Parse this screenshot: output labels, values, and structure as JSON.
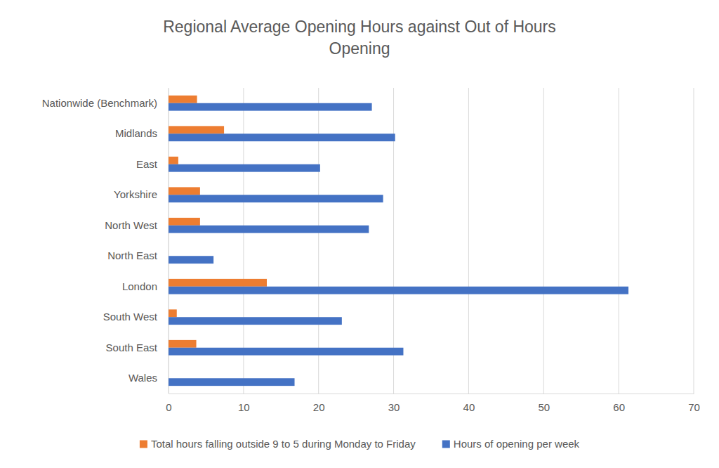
{
  "chart_data": {
    "type": "bar",
    "orientation": "horizontal",
    "title": "Regional Average Opening Hours against Out of Hours Opening",
    "categories": [
      "Nationwide (Benchmark)",
      "Midlands",
      "East",
      "Yorkshire",
      "North West",
      "North East",
      "London",
      "South West",
      "South East",
      "Wales"
    ],
    "series": [
      {
        "name": "Total hours falling outside 9 to 5 during Monday to Friday",
        "color": "#ed7d31",
        "values": [
          3.8,
          7.4,
          1.3,
          4.2,
          4.2,
          0,
          13.1,
          1.1,
          3.7,
          0
        ]
      },
      {
        "name": "Hours of opening per week",
        "color": "#4472c4",
        "values": [
          27.1,
          30.2,
          20.2,
          28.6,
          26.7,
          6.0,
          61.3,
          23.1,
          31.3,
          16.8
        ]
      }
    ],
    "xlim": [
      0,
      70
    ],
    "xticks": [
      0,
      10,
      20,
      30,
      40,
      50,
      60,
      70
    ],
    "grid": true,
    "legend": "bottom"
  }
}
